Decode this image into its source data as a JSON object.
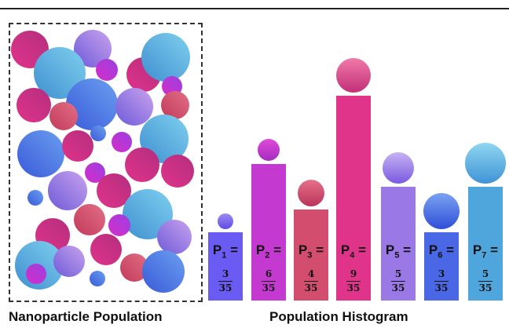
{
  "captions": {
    "left": "Nanoparticle Population",
    "right": "Population Histogram"
  },
  "colors": {
    "cyan": "#4aa6d6",
    "violet": "#8b6fe0",
    "magenta": "#d0338f",
    "rose": "#c94a6a",
    "royal": "#4a6be0",
    "purple": "#b93fd6"
  },
  "bars": [
    {
      "label": "P",
      "sub": "1",
      "eq": "=",
      "num": "3",
      "den": "35",
      "color": "#6a5cf2"
    },
    {
      "label": "P",
      "sub": "2",
      "eq": "=",
      "num": "6",
      "den": "35",
      "color": "#c43ad0"
    },
    {
      "label": "P",
      "sub": "3",
      "eq": "=",
      "num": "4",
      "den": "35",
      "color": "#d24d6e"
    },
    {
      "label": "P",
      "sub": "4",
      "eq": "=",
      "num": "9",
      "den": "35",
      "color": "#e0338a"
    },
    {
      "label": "P",
      "sub": "5",
      "eq": "=",
      "num": "5",
      "den": "35",
      "color": "#9a78e6"
    },
    {
      "label": "P",
      "sub": "6",
      "eq": "=",
      "num": "3",
      "den": "35",
      "color": "#4a67e6"
    },
    {
      "label": "P",
      "sub": "7",
      "eq": "=",
      "num": "5",
      "den": "35",
      "color": "#4ea6dc"
    }
  ]
}
